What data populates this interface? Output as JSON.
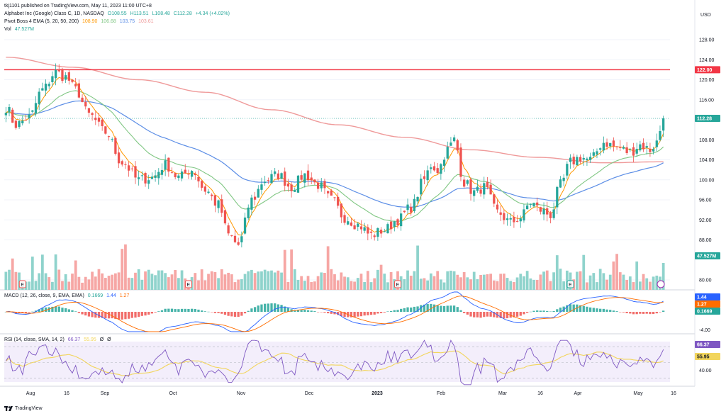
{
  "header": {
    "published": "tkj1101 published on TradingView.com, May 11, 2023 11:00 UTC+8",
    "symbol": "Alphabet Inc (Google) Class C, 1D, NASDAQ",
    "ohlc": {
      "o": "O108.55",
      "h": "H113.51",
      "l": "L108.48",
      "c": "C112.28",
      "chg": "+4.34 (+4.02%)"
    },
    "ema_name": "Pivot Boss 4 EMA (5, 20, 50, 200)",
    "ema_values": [
      "108.90",
      "106.68",
      "103.75",
      "103.61"
    ],
    "vol_name": "Vol",
    "vol_value": "47.527M",
    "macd_name": "MACD (12, 26, close, 9, EMA, EMA)",
    "macd_values": [
      "0.1669",
      "1.44",
      "1.27"
    ],
    "rsi_name": "RSI (14, close, SMA, 14, 2)",
    "rsi_values": [
      "66.37",
      "55.95",
      "Ø",
      "Ø"
    ],
    "currency": "USD",
    "footer_brand": "TradingView"
  },
  "colors": {
    "up": "#26a69a",
    "down": "#ef5350",
    "vol_up": "#8fd3cc",
    "vol_down": "#f6a6a4",
    "ema5": "#ff9800",
    "ema20": "#81c784",
    "ema50": "#5c8ee6",
    "ema200": "#ef9a9a",
    "resistance": "#f23645",
    "macd": "#2962ff",
    "signal": "#ff6d00",
    "rsi": "#7e57c2",
    "rsi_ma": "#f2d55c"
  },
  "chart_data": [
    {
      "type": "candlestick",
      "title": "Alphabet Inc (Google) Class C, 1D, NASDAQ",
      "ylabel": "USD",
      "ylim": [
        78,
        130
      ],
      "y_ticks": [
        "128.00",
        "124.00",
        "120.00",
        "116.00",
        "108.00",
        "104.00",
        "100.00",
        "96.00",
        "92.00",
        "88.00",
        "80.00"
      ],
      "x_ticks": [
        "Aug",
        "16",
        "Sep",
        "Oct",
        "Nov",
        "Dec",
        "2023",
        "Feb",
        "Mar",
        "16",
        "Apr",
        "May",
        "16"
      ],
      "anchors_close": [
        [
          0,
          114.5
        ],
        [
          3,
          111
        ],
        [
          7,
          112.5
        ],
        [
          11,
          118
        ],
        [
          15,
          121.5
        ],
        [
          18,
          120.5
        ],
        [
          21,
          118
        ],
        [
          25,
          113
        ],
        [
          30,
          109.5
        ],
        [
          35,
          103.5
        ],
        [
          40,
          100
        ],
        [
          44,
          100.5
        ],
        [
          48,
          103
        ],
        [
          52,
          100.5
        ],
        [
          56,
          102
        ],
        [
          60,
          98
        ],
        [
          64,
          95
        ],
        [
          67,
          89
        ],
        [
          70,
          87
        ],
        [
          74,
          96
        ],
        [
          78,
          100
        ],
        [
          82,
          101
        ],
        [
          86,
          98.5
        ],
        [
          90,
          101
        ],
        [
          94,
          99
        ],
        [
          98,
          96
        ],
        [
          102,
          92.5
        ],
        [
          106,
          91
        ],
        [
          110,
          89
        ],
        [
          114,
          90
        ],
        [
          118,
          92
        ],
        [
          122,
          94.5
        ],
        [
          126,
          100
        ],
        [
          128,
          103
        ],
        [
          130,
          102
        ],
        [
          133,
          106
        ],
        [
          135,
          108
        ],
        [
          138,
          99.5
        ],
        [
          141,
          97.5
        ],
        [
          144,
          98.5
        ],
        [
          148,
          93.5
        ],
        [
          152,
          91.5
        ],
        [
          155,
          92.5
        ],
        [
          158,
          95.5
        ],
        [
          161,
          94
        ],
        [
          164,
          93
        ],
        [
          167,
          99
        ],
        [
          170,
          103.5
        ],
        [
          173,
          104.5
        ],
        [
          176,
          104
        ],
        [
          180,
          107.5
        ],
        [
          184,
          106.5
        ],
        [
          188,
          105.5
        ],
        [
          191,
          107
        ],
        [
          194,
          106
        ],
        [
          196,
          107.5
        ],
        [
          198,
          112.28
        ]
      ],
      "n_candles": 199,
      "ema200_anchors": [
        [
          0,
          124.5
        ],
        [
          20,
          122.5
        ],
        [
          40,
          120
        ],
        [
          60,
          117.5
        ],
        [
          80,
          114
        ],
        [
          100,
          111
        ],
        [
          120,
          108.5
        ],
        [
          140,
          106
        ],
        [
          160,
          104.5
        ],
        [
          180,
          103.4
        ],
        [
          198,
          103.61
        ]
      ],
      "resistance_level": 122.0,
      "price_tags": [
        {
          "label": "122.00",
          "value": 122.0,
          "color": "#f23645"
        },
        {
          "label": "112.28",
          "value": 112.28,
          "color": "#26a69a"
        }
      ],
      "volume_tag": "47.527M",
      "earnings_markers": [
        "E",
        "E",
        "E",
        "E"
      ]
    },
    {
      "type": "line",
      "title": "MACD (12, 26, close, 9, EMA, EMA)",
      "y_ticks": [
        "-4.00"
      ],
      "ylim": [
        -5.5,
        3
      ],
      "tags": [
        {
          "label": "1.44",
          "color": "#2962ff"
        },
        {
          "label": "1.27",
          "color": "#ff6d00"
        },
        {
          "label": "0.1669",
          "color": "#26a69a"
        }
      ]
    },
    {
      "type": "line",
      "title": "RSI (14, close, SMA, 14, 2)",
      "y_ticks": [
        "60.00",
        "40.00"
      ],
      "ylim": [
        20,
        80
      ],
      "tags": [
        {
          "label": "66.37",
          "color": "#7e57c2"
        },
        {
          "label": "55.95",
          "color": "#f2d55c"
        }
      ]
    }
  ]
}
